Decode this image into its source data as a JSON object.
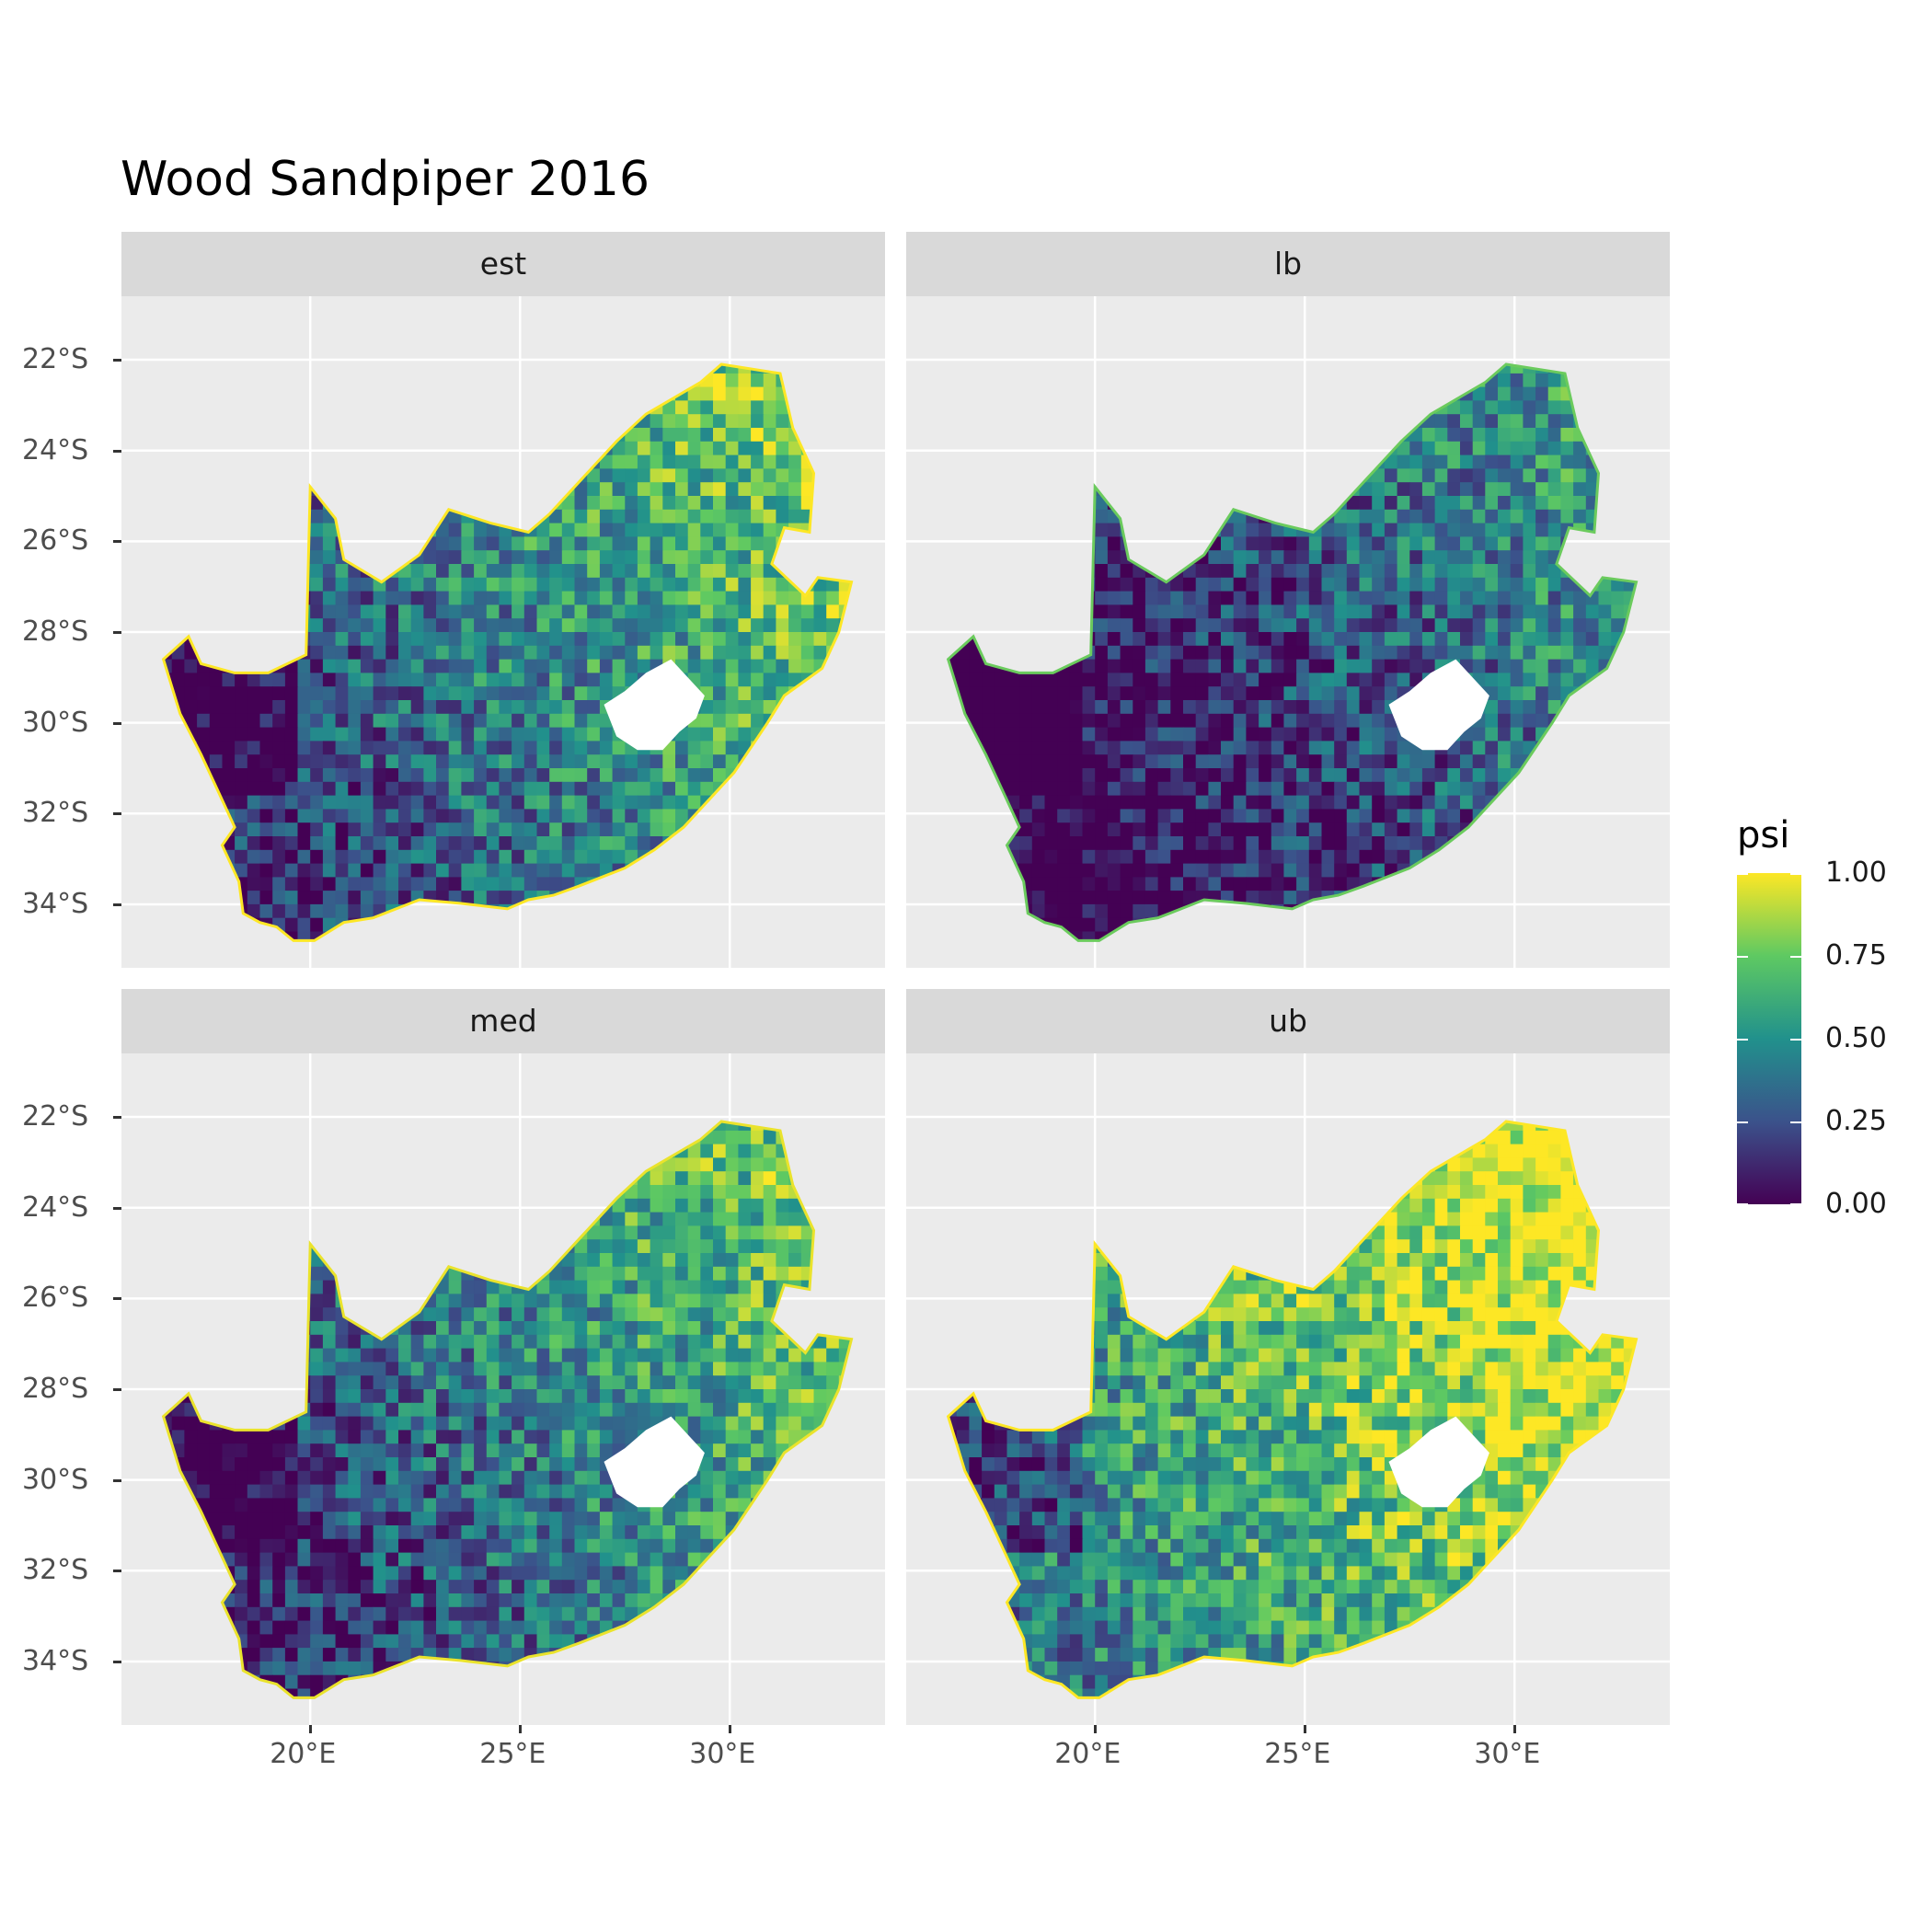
{
  "title": "Wood Sandpiper 2016",
  "panels": [
    {
      "label": "est",
      "mean_level": 0.45
    },
    {
      "label": "lb",
      "mean_level": 0.22
    },
    {
      "label": "med",
      "mean_level": 0.42
    },
    {
      "label": "ub",
      "mean_level": 0.7
    }
  ],
  "axes": {
    "y_ticks": [
      "22°S",
      "24°S",
      "26°S",
      "28°S",
      "30°S",
      "32°S",
      "34°S"
    ],
    "y_values": [
      -22,
      -24,
      -26,
      -28,
      -30,
      -32,
      -34
    ],
    "x_ticks": [
      "20°E",
      "25°E",
      "30°E"
    ],
    "x_values": [
      20,
      25,
      30
    ],
    "xlim": [
      15.5,
      33.7
    ],
    "ylim": [
      -35.4,
      -20.6
    ]
  },
  "legend": {
    "title": "psi",
    "labels": [
      "1.00",
      "0.75",
      "0.50",
      "0.25",
      "0.00"
    ],
    "values": [
      1.0,
      0.75,
      0.5,
      0.25,
      0.0
    ],
    "colormap": "viridis",
    "colors": [
      "#440154",
      "#3b528b",
      "#21918c",
      "#5ec962",
      "#fde725"
    ]
  },
  "colors": {
    "panel_bg": "#ebebeb",
    "strip_bg": "#d9d9d9",
    "grid": "#ffffff",
    "lesotho_hole": "#ffffff"
  }
}
